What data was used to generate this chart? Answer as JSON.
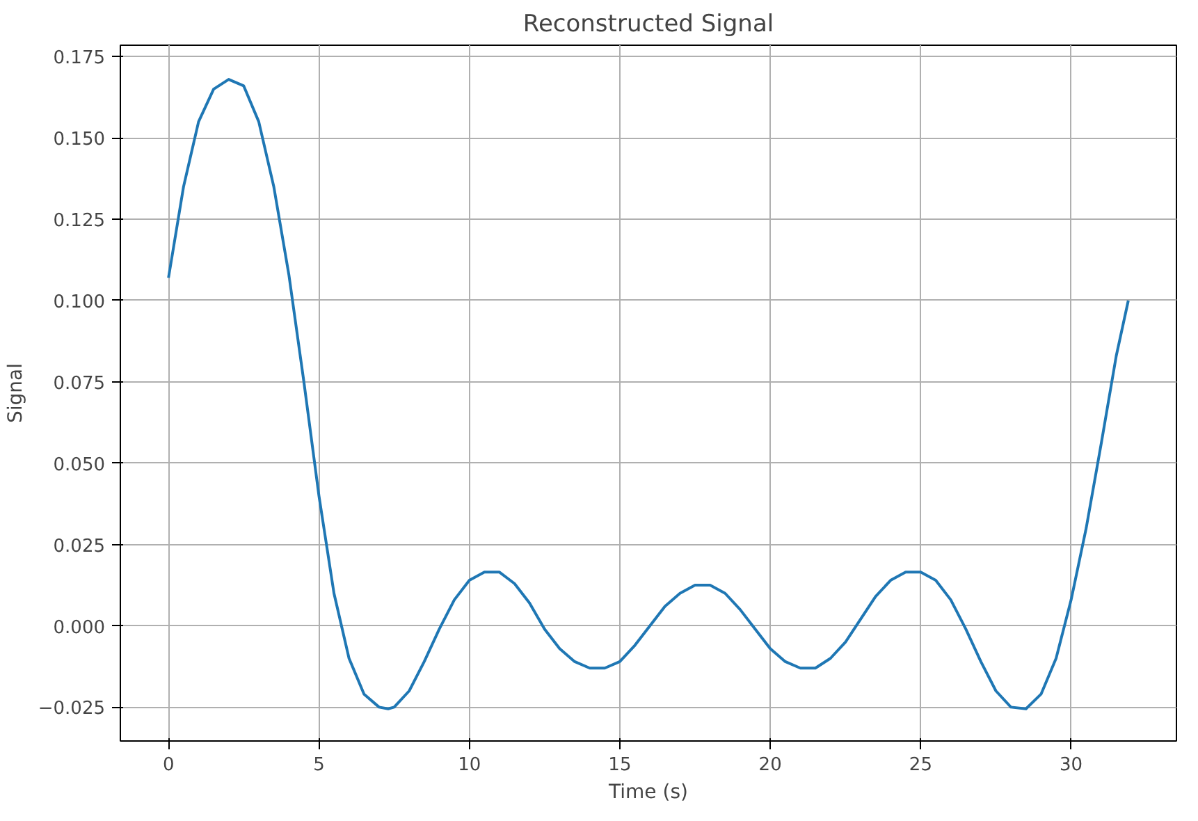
{
  "chart_data": {
    "type": "line",
    "title": "Reconstructed Signal",
    "xlabel": "Time (s)",
    "ylabel": "Signal",
    "x": [
      0,
      0.5,
      1,
      1.5,
      2,
      2.5,
      3,
      3.5,
      4,
      4.5,
      5,
      5.5,
      6,
      6.5,
      7,
      7.3,
      7.5,
      8,
      8.5,
      9,
      9.5,
      10,
      10.5,
      11,
      11.5,
      12,
      12.5,
      13,
      13.5,
      14,
      14.5,
      15,
      15.5,
      16,
      16.5,
      17,
      17.5,
      18,
      18.5,
      19,
      19.5,
      20,
      20.5,
      21,
      21.5,
      22,
      22.5,
      23,
      23.5,
      24,
      24.5,
      25,
      25.5,
      26,
      26.5,
      27,
      27.5,
      28,
      28.5,
      29,
      29.5,
      30,
      30.5,
      31,
      31.5,
      31.9
    ],
    "series": [
      {
        "color": "#1f77b4",
        "values": [
          0.107,
          0.135,
          0.155,
          0.165,
          0.168,
          0.166,
          0.155,
          0.135,
          0.108,
          0.075,
          0.04,
          0.01,
          -0.01,
          -0.021,
          -0.025,
          -0.0255,
          -0.025,
          -0.02,
          -0.011,
          -0.001,
          0.008,
          0.014,
          0.0165,
          0.0165,
          0.013,
          0.007,
          -0.001,
          -0.007,
          -0.011,
          -0.013,
          -0.013,
          -0.011,
          -0.006,
          0.0,
          0.006,
          0.01,
          0.0125,
          0.0125,
          0.01,
          0.005,
          -0.001,
          -0.007,
          -0.011,
          -0.013,
          -0.013,
          -0.01,
          -0.005,
          0.002,
          0.009,
          0.014,
          0.0165,
          0.0165,
          0.014,
          0.008,
          -0.001,
          -0.011,
          -0.02,
          -0.025,
          -0.0255,
          -0.021,
          -0.01,
          0.008,
          0.03,
          0.056,
          0.083,
          0.1
        ]
      }
    ],
    "xlim": [
      -1.6,
      33.5
    ],
    "ylim": [
      -0.0354,
      0.1785
    ],
    "xticks": [
      0,
      5,
      10,
      15,
      20,
      25,
      30
    ],
    "yticks": [
      {
        "value": -0.025,
        "label": "−0.025"
      },
      {
        "value": 0,
        "label": "0.000"
      },
      {
        "value": 0.025,
        "label": "0.025"
      },
      {
        "value": 0.05,
        "label": "0.050"
      },
      {
        "value": 0.075,
        "label": "0.075"
      },
      {
        "value": 0.1,
        "label": "0.100"
      },
      {
        "value": 0.125,
        "label": "0.125"
      },
      {
        "value": 0.15,
        "label": "0.150"
      },
      {
        "value": 0.175,
        "label": "0.175"
      }
    ],
    "grid": true,
    "line_style": "solid"
  }
}
